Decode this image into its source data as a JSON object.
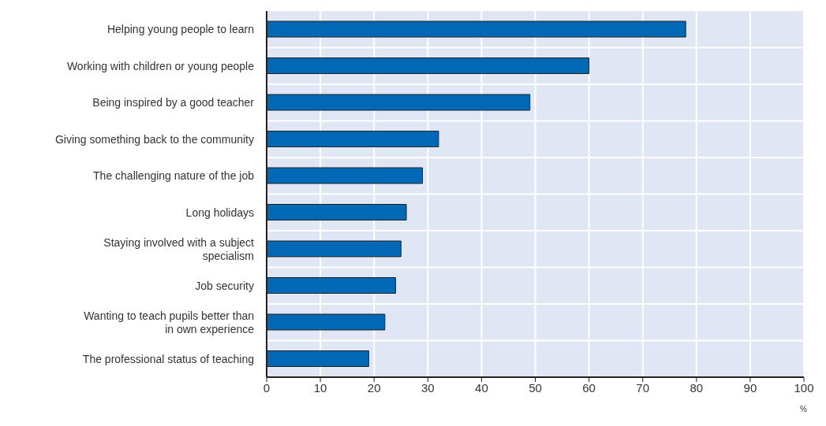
{
  "chart_data": {
    "type": "bar",
    "orientation": "horizontal",
    "categories": [
      "Helping young people to learn",
      "Working with children or young people",
      "Being inspired by a good teacher",
      "Giving something back to the community",
      "The challenging nature of the job",
      "Long holidays",
      "Staying involved with a subject\nspecialism",
      "Job security",
      "Wanting to teach pupils better than\nin own experience",
      "The professional status of teaching"
    ],
    "values": [
      78,
      60,
      49,
      32,
      29,
      26,
      25,
      24,
      22,
      19
    ],
    "color": "#0068b5",
    "xlabel": "%",
    "xlim": [
      0,
      100
    ],
    "xticks": [
      0,
      10,
      20,
      30,
      40,
      50,
      60,
      70,
      80,
      90,
      100
    ],
    "grid": true
  }
}
